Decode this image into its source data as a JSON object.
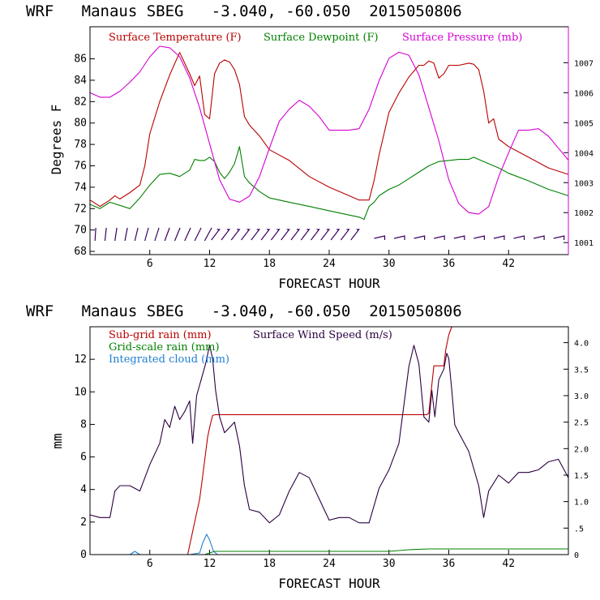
{
  "chart_data": [
    {
      "type": "line",
      "title": "WRF   Manaus SBEG   -3.040, -60.050  2015050806",
      "xlabel": "FORECAST HOUR",
      "ylabel": "Degrees F",
      "xlim": [
        0,
        48
      ],
      "ylim": [
        67.7,
        89
      ],
      "y2lim": [
        1000.6,
        1008.2
      ],
      "xticks": [
        6,
        12,
        18,
        24,
        30,
        36,
        42
      ],
      "yticks": [
        68,
        70,
        72,
        74,
        76,
        78,
        80,
        82,
        84,
        86
      ],
      "y2ticks": [
        1001,
        1002,
        1003,
        1004,
        1005,
        1006,
        1007
      ],
      "legend": [
        "Surface Temperature (F)",
        "Surface Dewpoint (F)",
        "Surface Pressure (mb)"
      ],
      "colors": {
        "temp": "#b80000",
        "dew": "#008000",
        "pres": "#d400d4",
        "barbs": "#3a0060"
      },
      "series": [
        {
          "name": "Surface Temperature (F)",
          "axis": "left",
          "x": [
            0,
            1,
            2,
            2.5,
            3,
            4,
            5,
            5.5,
            6,
            7,
            8,
            9,
            9.5,
            10,
            10.5,
            11,
            11.5,
            12,
            12.5,
            13,
            13.5,
            14,
            14.5,
            15,
            15.5,
            16,
            17,
            18,
            20,
            22,
            24,
            26,
            27,
            28,
            28.5,
            29,
            30,
            31,
            32,
            33,
            33.5,
            34,
            34.5,
            35,
            35.5,
            36,
            37,
            38,
            38.5,
            39,
            39.5,
            40,
            40.5,
            41,
            42,
            44,
            46,
            48
          ],
          "y": [
            72.8,
            72.2,
            72.8,
            73.2,
            72.9,
            73.5,
            74.2,
            76,
            79,
            82,
            84.5,
            86.6,
            85.6,
            84.6,
            83.5,
            84.4,
            80.8,
            80.4,
            84.6,
            85.6,
            85.9,
            85.7,
            85,
            83.6,
            80.6,
            79.8,
            78.8,
            77.5,
            76.5,
            75,
            74,
            73.2,
            72.8,
            72.8,
            74.6,
            77,
            81,
            82.8,
            84.3,
            85.4,
            85.4,
            85.8,
            85.6,
            84.2,
            84.6,
            85.4,
            85.4,
            85.6,
            85.5,
            85,
            83,
            80,
            80.4,
            78.5,
            77.8,
            76.8,
            75.8,
            75.2
          ]
        },
        {
          "name": "Surface Dewpoint (F)",
          "axis": "left",
          "x": [
            0,
            1,
            2,
            3,
            4,
            5,
            6,
            7,
            8,
            9,
            10,
            10.5,
            11,
            11.5,
            12,
            12.5,
            13,
            13.5,
            14,
            14.5,
            15,
            15.5,
            16,
            17,
            18,
            20,
            22,
            24,
            26,
            27,
            27.5,
            28,
            28.5,
            29,
            30,
            31,
            32,
            33,
            34,
            35,
            36,
            37,
            38,
            38.5,
            39,
            39.5,
            40,
            41,
            42,
            44,
            46,
            48
          ],
          "y": [
            72.4,
            72,
            72.6,
            72.3,
            72,
            73,
            74.2,
            75.2,
            75.3,
            75,
            75.6,
            76.6,
            76.5,
            76.5,
            76.8,
            76.4,
            75.4,
            74.8,
            75.4,
            76.2,
            77.8,
            75,
            74.4,
            73.6,
            73,
            72.6,
            72.2,
            71.8,
            71.4,
            71.2,
            71,
            72.2,
            72.6,
            73.2,
            73.8,
            74.2,
            74.8,
            75.4,
            76,
            76.4,
            76.5,
            76.6,
            76.6,
            76.8,
            76.6,
            76.4,
            76.2,
            75.8,
            75.3,
            74.6,
            73.8,
            73.2
          ]
        },
        {
          "name": "Surface Pressure (mb)",
          "axis": "right",
          "x": [
            0,
            1,
            2,
            3,
            4,
            5,
            6,
            7,
            8,
            9,
            10,
            11,
            12,
            13,
            14,
            15,
            16,
            17,
            18,
            19,
            20,
            21,
            22,
            23,
            24,
            25,
            26,
            27,
            28,
            29,
            30,
            31,
            32,
            33,
            34,
            35,
            36,
            37,
            38,
            39,
            40,
            41,
            42,
            43,
            44,
            45,
            46,
            47,
            48
          ],
          "y": [
            1006,
            1005.85,
            1005.85,
            1006.05,
            1006.35,
            1006.7,
            1007.2,
            1007.55,
            1007.5,
            1007.2,
            1006.5,
            1005.5,
            1004.3,
            1003.1,
            1002.45,
            1002.35,
            1002.55,
            1003.2,
            1004.15,
            1005.05,
            1005.45,
            1005.75,
            1005.55,
            1005.2,
            1004.75,
            1004.75,
            1004.75,
            1004.8,
            1005.45,
            1006.4,
            1007.15,
            1007.35,
            1007.25,
            1006.6,
            1005.5,
            1004.4,
            1003.1,
            1002.3,
            1002,
            1001.95,
            1002.2,
            1003.2,
            1004,
            1004.75,
            1004.75,
            1004.8,
            1004.55,
            1004.15,
            1003.75
          ]
        }
      ],
      "wind_barb_hours": [
        0.5,
        1.5,
        2.5,
        3.5,
        4.5,
        5.5,
        6.5,
        7.5,
        8.5,
        9.5,
        10.5,
        11.5,
        12.5,
        13.5,
        14.5,
        15.5,
        16.5,
        17.5,
        18.5,
        19.5,
        20.5,
        21.5,
        22.5,
        23.5,
        24.5,
        25.5,
        26.5,
        29,
        31,
        33,
        35,
        37,
        39,
        41,
        43,
        45,
        47
      ]
    },
    {
      "type": "line",
      "title": "WRF   Manaus SBEG   -3.040, -60.050  2015050806",
      "xlabel": "FORECAST HOUR",
      "ylabel": "mm",
      "xlim": [
        0,
        48
      ],
      "ylim": [
        0,
        14
      ],
      "y2lim": [
        0,
        4.3
      ],
      "xticks": [
        6,
        12,
        18,
        24,
        30,
        36,
        42
      ],
      "yticks": [
        0,
        2,
        4,
        6,
        8,
        10,
        12
      ],
      "y2ticks": [
        "0",
        ".5",
        "1.0",
        "1.5",
        "2.0",
        "2.5",
        "3.0",
        "3.5",
        "4.0"
      ],
      "legend": [
        "Sub-grid rain (mm)",
        "Surface Wind Speed (m/s)",
        "Grid-scale rain (mm)",
        "Integrated cloud (mm)"
      ],
      "colors": {
        "subgrid": "#b80000",
        "wind": "#2a0040",
        "grid": "#008000",
        "cloud": "#1e7fd0"
      },
      "series": [
        {
          "name": "Sub-grid rain (mm)",
          "axis": "left",
          "x": [
            0,
            9.8,
            10.5,
            11,
            11.3,
            11.8,
            12,
            12.3,
            12.6,
            33.8,
            34,
            34.5,
            35.5,
            35.7,
            36,
            36.3,
            48
          ],
          "y": [
            0,
            0,
            2,
            3.4,
            4.8,
            7.2,
            7.8,
            8.55,
            8.6,
            8.6,
            8.7,
            11.6,
            11.6,
            12.6,
            13.5,
            14,
            14
          ]
        },
        {
          "name": "Surface Wind Speed (m/s)",
          "axis": "right",
          "x": [
            0,
            1,
            2,
            2.5,
            3,
            4,
            5,
            6,
            7,
            7.5,
            8,
            8.5,
            9,
            9.5,
            10,
            10.3,
            10.7,
            11,
            11.3,
            11.6,
            12,
            12.3,
            12.6,
            13,
            13.5,
            14,
            14.5,
            15,
            15.5,
            16,
            17,
            18,
            19,
            20,
            21,
            22,
            23,
            24,
            25,
            26,
            27,
            28,
            29,
            30,
            31,
            32,
            32.5,
            33,
            33.5,
            34,
            34.3,
            34.6,
            35,
            35.5,
            35.8,
            36,
            36.3,
            36.6,
            37,
            38,
            39,
            39.5,
            40,
            41,
            42,
            43,
            44,
            45,
            46,
            47,
            48
          ],
          "y": [
            0.75,
            0.7,
            0.7,
            1.2,
            1.3,
            1.3,
            1.2,
            1.7,
            2.1,
            2.55,
            2.4,
            2.8,
            2.55,
            2.7,
            2.9,
            2.1,
            3.0,
            3.2,
            3.4,
            3.6,
            3.95,
            3.7,
            3.1,
            2.6,
            2.3,
            2.4,
            2.5,
            2.05,
            1.3,
            0.85,
            0.8,
            0.6,
            0.75,
            1.2,
            1.55,
            1.45,
            1.05,
            0.65,
            0.7,
            0.7,
            0.6,
            0.6,
            1.25,
            1.6,
            2.1,
            3.55,
            3.95,
            3.6,
            2.6,
            2.5,
            3.1,
            2.6,
            3.3,
            3.5,
            3.8,
            3.7,
            3.1,
            2.45,
            2.3,
            1.95,
            1.3,
            0.7,
            1.2,
            1.5,
            1.35,
            1.55,
            1.55,
            1.6,
            1.75,
            1.8,
            1.45
          ]
        },
        {
          "name": "Grid-scale rain (mm)",
          "axis": "left",
          "x": [
            0,
            11.5,
            12,
            12.5,
            30,
            32,
            34,
            48
          ],
          "y": [
            0,
            0,
            0.1,
            0.2,
            0.2,
            0.3,
            0.35,
            0.35
          ]
        },
        {
          "name": "Integrated cloud (mm)",
          "axis": "left",
          "x": [
            0,
            4,
            4.5,
            5,
            10,
            11,
            11.3,
            11.7,
            12,
            12.4,
            12.8,
            48
          ],
          "y": [
            0,
            0,
            0.2,
            0,
            0,
            0.1,
            0.7,
            1.25,
            0.9,
            0.2,
            0,
            0
          ]
        }
      ]
    }
  ]
}
